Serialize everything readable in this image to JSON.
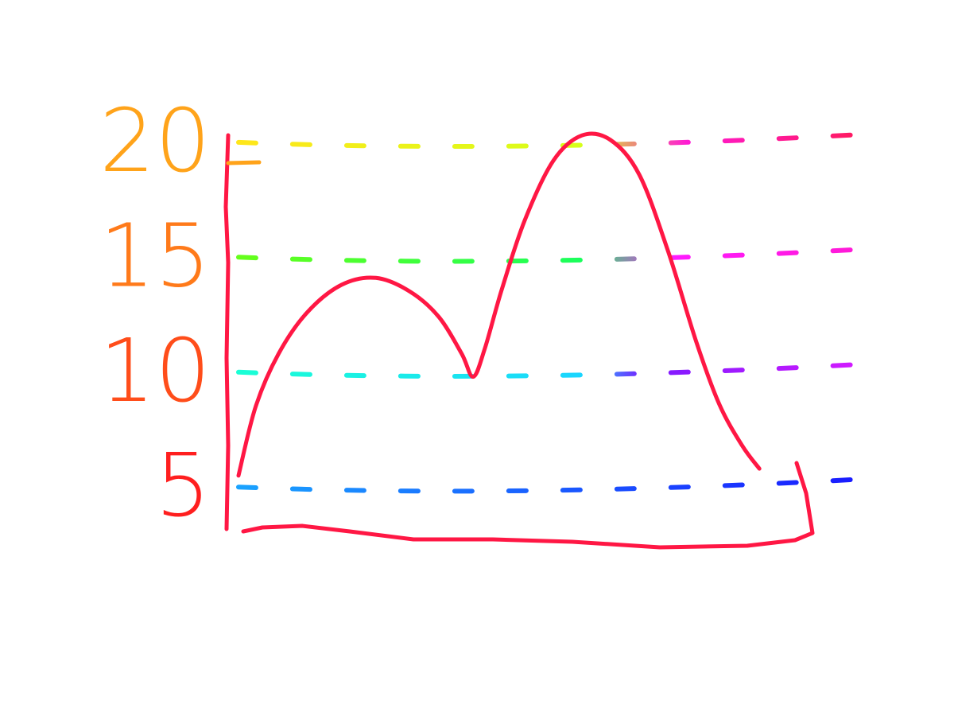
{
  "chart_data": {
    "type": "line",
    "title": "",
    "xlabel": "",
    "ylabel": "",
    "y_ticks": [
      "5",
      "10",
      "15",
      "20"
    ],
    "ylim": [
      3,
      21
    ],
    "xlim": [
      0,
      10
    ],
    "grid": true,
    "grid_style": "dashed rainbow",
    "legend": "none",
    "series": [
      {
        "color": "#ff1744",
        "x": [
          0,
          0.3,
          0.7,
          1.2,
          1.8,
          2.4,
          3.0,
          3.5,
          3.9,
          4.1,
          4.3,
          4.6,
          5.0,
          5.5,
          6.0,
          6.5,
          7.0,
          7.5,
          8.0,
          8.4,
          8.8,
          9.1
        ],
        "y": [
          5.5,
          8.5,
          10.8,
          12.6,
          13.8,
          14.1,
          13.5,
          12.4,
          10.8,
          9.8,
          11.0,
          13.6,
          16.6,
          19.2,
          20.3,
          20.1,
          18.6,
          15.3,
          11.3,
          8.6,
          6.8,
          5.8
        ]
      }
    ],
    "colors": {
      "axis": "#ff1744",
      "tick_gradient": [
        "#ffa31a",
        "#ff7a1a",
        "#ff4d1a",
        "#ff1f1f"
      ],
      "gridline_gradient": [
        "#ffe61a",
        "#66ff1a",
        "#1affd5",
        "#1a66ff",
        "#9a1aff",
        "#ff1ad5",
        "#ff1a5c"
      ]
    }
  }
}
